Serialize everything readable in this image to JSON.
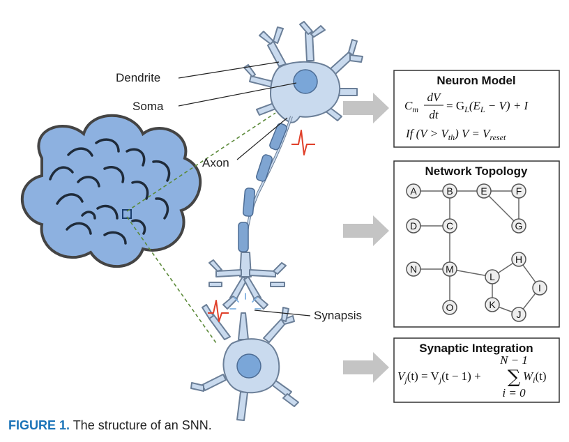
{
  "labels": {
    "dendrite": "Dendrite",
    "soma": "Soma",
    "axon": "Axon",
    "synapsis": "Synapsis"
  },
  "neuron_model": {
    "title": "Neuron Model",
    "eq1_lhs": "C",
    "eq1_lhs_sub": "m",
    "eq1_num": "dV",
    "eq1_den": "dt",
    "eq1_rhs_a": "= G",
    "eq1_rhs_a_sub": "L",
    "eq1_rhs_b": "(E",
    "eq1_rhs_b_sub": "L",
    "eq1_rhs_c": " − V) + I",
    "eq2_a": "If (V > V",
    "eq2_a_sub": "th",
    "eq2_b": ") V = V",
    "eq2_b_sub": "reset"
  },
  "network_topology": {
    "title": "Network Topology",
    "nodes": [
      "A",
      "B",
      "E",
      "F",
      "D",
      "C",
      "G",
      "N",
      "M",
      "H",
      "L",
      "I",
      "O",
      "K",
      "J"
    ]
  },
  "synaptic_integration": {
    "title": "Synaptic Integration",
    "lhs": "V",
    "lhs_sub": "j",
    "mid": "(t) = V",
    "mid_sub": "j",
    "mid2": "(t − 1) +",
    "sum_top": "N − 1",
    "sum_bottom": "i = 0",
    "rhs": "W",
    "rhs_sub": "i",
    "rhs2": "(t)"
  },
  "caption": {
    "figure_label": "FIGURE 1.",
    "text": " The structure of an SNN."
  },
  "colors": {
    "neuron_fill": "#c9daee",
    "neuron_stroke": "#6b7f98",
    "soma_fill": "#7aa6d8",
    "axon_segment": "#7fa5d2",
    "brain_fill": "#8db1e0",
    "dash_green": "#5c8a3a",
    "spike_red": "#e0402a",
    "arrow_gray": "#c4c4c4",
    "caption_blue": "#1a73b8"
  }
}
